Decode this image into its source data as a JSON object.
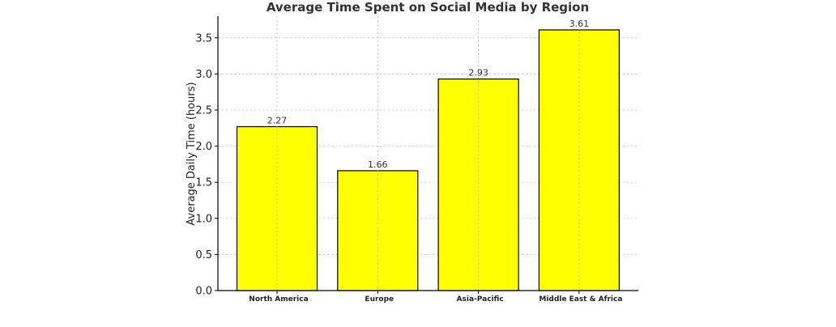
{
  "chart_data": {
    "type": "bar",
    "title": "Average Time Spent on Social Media by Region",
    "xlabel": "",
    "ylabel": "Average Daily Time (hours)",
    "categories": [
      "North America",
      "Europe",
      "Asia-Pacific",
      "Middle East & Africa"
    ],
    "values": [
      2.27,
      1.66,
      2.93,
      3.61
    ],
    "value_labels": [
      "2.27",
      "1.66",
      "2.93",
      "3.61"
    ],
    "ylim": [
      0,
      3.8
    ],
    "yticks": [
      0.0,
      0.5,
      1.0,
      1.5,
      2.0,
      2.5,
      3.0,
      3.5
    ],
    "ytick_labels": [
      "0.0",
      "0.5",
      "1.0",
      "1.5",
      "2.0",
      "2.5",
      "3.0",
      "3.5"
    ],
    "bar_color": "#ffff00",
    "edge_color": "#000000",
    "grid": true,
    "legend": "none"
  }
}
